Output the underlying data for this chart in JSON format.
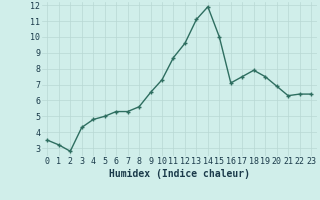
{
  "x": [
    0,
    1,
    2,
    3,
    4,
    5,
    6,
    7,
    8,
    9,
    10,
    11,
    12,
    13,
    14,
    15,
    16,
    17,
    18,
    19,
    20,
    21,
    22,
    23
  ],
  "y": [
    3.5,
    3.2,
    2.8,
    4.3,
    4.8,
    5.0,
    5.3,
    5.3,
    5.6,
    6.5,
    7.3,
    8.7,
    9.6,
    11.1,
    11.9,
    10.0,
    7.1,
    7.5,
    7.9,
    7.5,
    6.9,
    6.3,
    6.4,
    6.4
  ],
  "xlabel": "Humidex (Indice chaleur)",
  "xlim_min": -0.5,
  "xlim_max": 23.5,
  "ylim_min": 2.5,
  "ylim_max": 12.2,
  "yticks": [
    3,
    4,
    5,
    6,
    7,
    8,
    9,
    10,
    11,
    12
  ],
  "xticks": [
    0,
    1,
    2,
    3,
    4,
    5,
    6,
    7,
    8,
    9,
    10,
    11,
    12,
    13,
    14,
    15,
    16,
    17,
    18,
    19,
    20,
    21,
    22,
    23
  ],
  "line_color": "#2e6e60",
  "bg_color": "#d0eeea",
  "grid_color": "#b8d8d4",
  "label_color": "#1a3a4a",
  "xlabel_fontsize": 7,
  "tick_fontsize": 6,
  "line_width": 1.0,
  "marker_size": 3.5
}
